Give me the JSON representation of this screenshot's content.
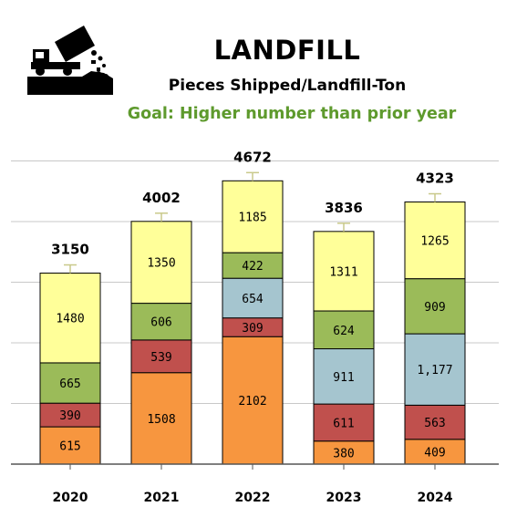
{
  "header": {
    "title": "LANDFILL",
    "subtitle": "Pieces Shipped/Landfill-Ton",
    "goal": "Goal: Higher number than prior year",
    "logo_icon": "dump-truck-icon"
  },
  "colors": {
    "orange": "#f7963f",
    "red": "#c0504d",
    "blue": "#a5c5cf",
    "green": "#9bbb59",
    "yellow": "#ffff99",
    "goal_text": "#5e9a2d",
    "grid": "#c8c8c8",
    "errorbar": "#c9c98a"
  },
  "chart_data": {
    "type": "bar",
    "stacked": true,
    "categories": [
      "2020",
      "2021",
      "2022",
      "2023",
      "2024"
    ],
    "series": [
      {
        "color": "orange",
        "values": [
          615,
          1508,
          2102,
          380,
          409
        ],
        "labels": [
          "615",
          "1508",
          "2102",
          "380",
          "409"
        ]
      },
      {
        "color": "red",
        "values": [
          390,
          539,
          309,
          611,
          563
        ],
        "labels": [
          "390",
          "539",
          "309",
          "611",
          "563"
        ]
      },
      {
        "color": "blue",
        "values": [
          0,
          0,
          654,
          911,
          1177
        ],
        "labels": [
          "",
          "",
          "654",
          "911",
          "1,177"
        ]
      },
      {
        "color": "green",
        "values": [
          665,
          606,
          422,
          624,
          909
        ],
        "labels": [
          "665",
          "606",
          "422",
          "624",
          "909"
        ]
      },
      {
        "color": "yellow",
        "values": [
          1480,
          1350,
          1185,
          1311,
          1265
        ],
        "labels": [
          "1480",
          "1350",
          "1185",
          "1311",
          "1265"
        ]
      }
    ],
    "totals": [
      "3150",
      "4002",
      "4672",
      "3836",
      "4323"
    ],
    "title": "LANDFILL",
    "subtitle": "Pieces Shipped/Landfill-Ton",
    "xlabel": "",
    "ylabel": "",
    "ylim": [
      0,
      5000
    ],
    "grid": true,
    "legend": "none",
    "error_bars": true
  }
}
